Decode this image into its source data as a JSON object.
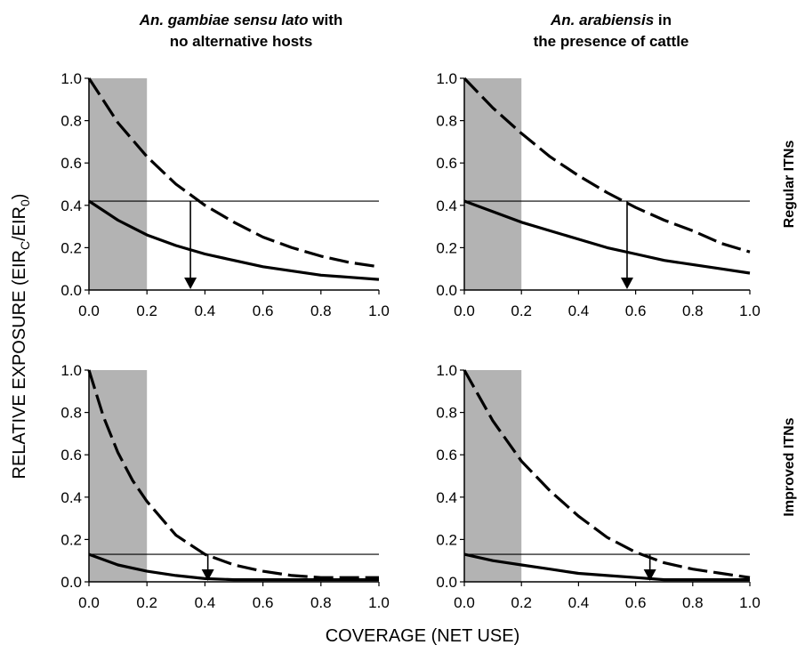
{
  "figure": {
    "column_titles": [
      {
        "italic": "An. gambiae sensu lato",
        "rest": " with",
        "line2": "no alternative hosts"
      },
      {
        "italic": "An. arabiensis",
        "rest": " in",
        "line2": "the presence of cattle"
      }
    ],
    "row_labels": [
      "Regular ITNs",
      "Improved ITNs"
    ],
    "ylabel": {
      "main": "RELATIVE EXPOSURE (EIR",
      "sub1": "C",
      "mid": "/EIR",
      "sub2": "0",
      "end": ")"
    },
    "xlabel": "COVERAGE (NET USE)",
    "colors": {
      "shade": "#b3b3b3",
      "line": "#000000"
    }
  },
  "chart_data": [
    {
      "type": "line",
      "panel": "top-left",
      "xlim": [
        0,
        1
      ],
      "ylim": [
        0,
        1
      ],
      "xticks": [
        "0.0",
        "0.2",
        "0.4",
        "0.6",
        "0.8",
        "1.0"
      ],
      "yticks": [
        "0.0",
        "0.2",
        "0.4",
        "0.6",
        "0.8",
        "1.0"
      ],
      "shaded_x": [
        0,
        0.2
      ],
      "hline": 0.42,
      "arrow_x": 0.35,
      "series": [
        {
          "style": "dashed",
          "x": [
            0,
            0.1,
            0.2,
            0.3,
            0.4,
            0.5,
            0.6,
            0.7,
            0.8,
            0.9,
            1.0
          ],
          "y": [
            1.0,
            0.79,
            0.63,
            0.5,
            0.4,
            0.32,
            0.25,
            0.2,
            0.16,
            0.13,
            0.11
          ]
        },
        {
          "style": "solid",
          "x": [
            0,
            0.1,
            0.2,
            0.3,
            0.4,
            0.5,
            0.6,
            0.7,
            0.8,
            0.9,
            1.0
          ],
          "y": [
            0.42,
            0.33,
            0.26,
            0.21,
            0.17,
            0.14,
            0.11,
            0.09,
            0.07,
            0.06,
            0.05
          ]
        }
      ]
    },
    {
      "type": "line",
      "panel": "top-right",
      "xlim": [
        0,
        1
      ],
      "ylim": [
        0,
        1
      ],
      "xticks": [
        "0.0",
        "0.2",
        "0.4",
        "0.6",
        "0.8",
        "1.0"
      ],
      "yticks": [
        "0.0",
        "0.2",
        "0.4",
        "0.6",
        "0.8",
        "1.0"
      ],
      "shaded_x": [
        0,
        0.2
      ],
      "hline": 0.42,
      "arrow_x": 0.57,
      "series": [
        {
          "style": "dashed",
          "x": [
            0,
            0.1,
            0.2,
            0.3,
            0.4,
            0.5,
            0.6,
            0.7,
            0.8,
            0.9,
            1.0
          ],
          "y": [
            1.0,
            0.86,
            0.74,
            0.63,
            0.54,
            0.46,
            0.39,
            0.33,
            0.28,
            0.22,
            0.18
          ]
        },
        {
          "style": "solid",
          "x": [
            0,
            0.1,
            0.2,
            0.3,
            0.4,
            0.5,
            0.6,
            0.7,
            0.8,
            0.9,
            1.0
          ],
          "y": [
            0.42,
            0.37,
            0.32,
            0.28,
            0.24,
            0.2,
            0.17,
            0.14,
            0.12,
            0.1,
            0.08
          ]
        }
      ]
    },
    {
      "type": "line",
      "panel": "bottom-left",
      "xlim": [
        0,
        1
      ],
      "ylim": [
        0,
        1
      ],
      "xticks": [
        "0.0",
        "0.2",
        "0.4",
        "0.6",
        "0.8",
        "1.0"
      ],
      "yticks": [
        "0.0",
        "0.2",
        "0.4",
        "0.6",
        "0.8",
        "1.0"
      ],
      "shaded_x": [
        0,
        0.2
      ],
      "hline": 0.13,
      "arrow_x": 0.41,
      "series": [
        {
          "style": "dashed",
          "x": [
            0,
            0.05,
            0.1,
            0.15,
            0.2,
            0.3,
            0.4,
            0.5,
            0.6,
            0.7,
            0.8,
            0.9,
            1.0
          ],
          "y": [
            1.0,
            0.78,
            0.61,
            0.48,
            0.38,
            0.22,
            0.13,
            0.08,
            0.05,
            0.03,
            0.02,
            0.02,
            0.02
          ]
        },
        {
          "style": "solid",
          "x": [
            0,
            0.1,
            0.2,
            0.3,
            0.4,
            0.5,
            0.6,
            0.7,
            0.8,
            0.9,
            1.0
          ],
          "y": [
            0.13,
            0.08,
            0.05,
            0.03,
            0.015,
            0.01,
            0.01,
            0.01,
            0.01,
            0.01,
            0.01
          ]
        }
      ]
    },
    {
      "type": "line",
      "panel": "bottom-right",
      "xlim": [
        0,
        1
      ],
      "ylim": [
        0,
        1
      ],
      "xticks": [
        "0.0",
        "0.2",
        "0.4",
        "0.6",
        "0.8",
        "1.0"
      ],
      "yticks": [
        "0.0",
        "0.2",
        "0.4",
        "0.6",
        "0.8",
        "1.0"
      ],
      "shaded_x": [
        0,
        0.2
      ],
      "hline": 0.13,
      "arrow_x": 0.65,
      "series": [
        {
          "style": "dashed",
          "x": [
            0,
            0.1,
            0.2,
            0.3,
            0.4,
            0.5,
            0.6,
            0.7,
            0.8,
            0.9,
            1.0
          ],
          "y": [
            1.0,
            0.76,
            0.57,
            0.43,
            0.31,
            0.21,
            0.14,
            0.09,
            0.06,
            0.04,
            0.02
          ]
        },
        {
          "style": "solid",
          "x": [
            0,
            0.1,
            0.2,
            0.3,
            0.4,
            0.5,
            0.6,
            0.7,
            0.8,
            0.9,
            1.0
          ],
          "y": [
            0.13,
            0.1,
            0.08,
            0.06,
            0.04,
            0.03,
            0.02,
            0.01,
            0.01,
            0.01,
            0.01
          ]
        }
      ]
    }
  ]
}
